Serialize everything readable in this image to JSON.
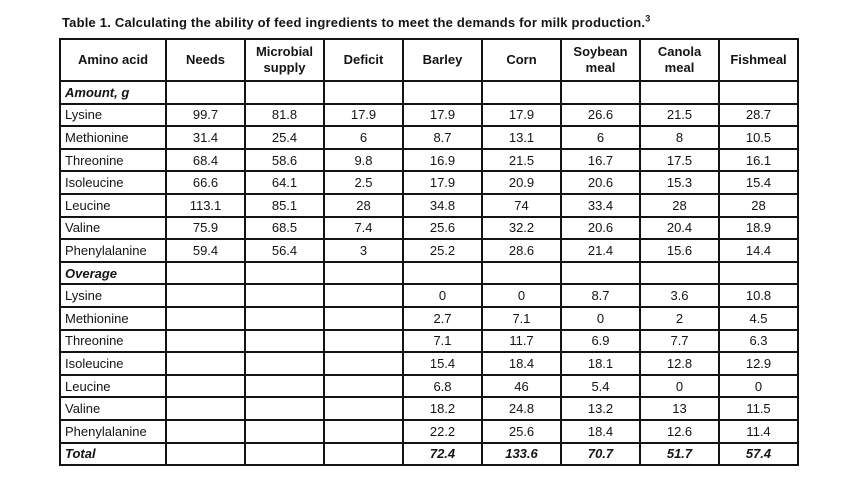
{
  "title": "Table 1. Calculating the ability of feed ingredients to meet the demands for milk production.",
  "title_superscript": "3",
  "colors": {
    "background": "#ffffff",
    "text": "#141414",
    "border": "#141414"
  },
  "table": {
    "columns": [
      "Amino acid",
      "Needs",
      "Microbial supply",
      "Deficit",
      "Barley",
      "Corn",
      "Soybean meal",
      "Canola meal",
      "Fishmeal"
    ],
    "rows": [
      {
        "label": "Amount, g",
        "type": "section",
        "values": [
          "",
          "",
          "",
          "",
          "",
          "",
          "",
          ""
        ]
      },
      {
        "label": "Lysine",
        "type": "data",
        "values": [
          "99.7",
          "81.8",
          "17.9",
          "17.9",
          "17.9",
          "26.6",
          "21.5",
          "28.7"
        ]
      },
      {
        "label": "Methionine",
        "type": "data",
        "values": [
          "31.4",
          "25.4",
          "6",
          "8.7",
          "13.1",
          "6",
          "8",
          "10.5"
        ]
      },
      {
        "label": "Threonine",
        "type": "data",
        "values": [
          "68.4",
          "58.6",
          "9.8",
          "16.9",
          "21.5",
          "16.7",
          "17.5",
          "16.1"
        ]
      },
      {
        "label": "Isoleucine",
        "type": "data",
        "values": [
          "66.6",
          "64.1",
          "2.5",
          "17.9",
          "20.9",
          "20.6",
          "15.3",
          "15.4"
        ]
      },
      {
        "label": "Leucine",
        "type": "data",
        "values": [
          "113.1",
          "85.1",
          "28",
          "34.8",
          "74",
          "33.4",
          "28",
          "28"
        ]
      },
      {
        "label": "Valine",
        "type": "data",
        "values": [
          "75.9",
          "68.5",
          "7.4",
          "25.6",
          "32.2",
          "20.6",
          "20.4",
          "18.9"
        ]
      },
      {
        "label": "Phenylalanine",
        "type": "data",
        "values": [
          "59.4",
          "56.4",
          "3",
          "25.2",
          "28.6",
          "21.4",
          "15.6",
          "14.4"
        ]
      },
      {
        "label": "Overage",
        "type": "section",
        "values": [
          "",
          "",
          "",
          "",
          "",
          "",
          "",
          ""
        ]
      },
      {
        "label": "Lysine",
        "type": "data",
        "values": [
          "",
          "",
          "",
          "0",
          "0",
          "8.7",
          "3.6",
          "10.8"
        ]
      },
      {
        "label": "Methionine",
        "type": "data",
        "values": [
          "",
          "",
          "",
          "2.7",
          "7.1",
          "0",
          "2",
          "4.5"
        ]
      },
      {
        "label": "Threonine",
        "type": "data",
        "values": [
          "",
          "",
          "",
          "7.1",
          "11.7",
          "6.9",
          "7.7",
          "6.3"
        ]
      },
      {
        "label": "Isoleucine",
        "type": "data",
        "values": [
          "",
          "",
          "",
          "15.4",
          "18.4",
          "18.1",
          "12.8",
          "12.9"
        ]
      },
      {
        "label": "Leucine",
        "type": "data",
        "values": [
          "",
          "",
          "",
          "6.8",
          "46",
          "5.4",
          "0",
          "0"
        ]
      },
      {
        "label": "Valine",
        "type": "data",
        "values": [
          "",
          "",
          "",
          "18.2",
          "24.8",
          "13.2",
          "13",
          "11.5"
        ]
      },
      {
        "label": "Phenylalanine",
        "type": "data",
        "values": [
          "",
          "",
          "",
          "22.2",
          "25.6",
          "18.4",
          "12.6",
          "11.4"
        ]
      },
      {
        "label": "Total",
        "type": "total",
        "values": [
          "",
          "",
          "",
          "72.4",
          "133.6",
          "70.7",
          "51.7",
          "57.4"
        ]
      }
    ]
  }
}
